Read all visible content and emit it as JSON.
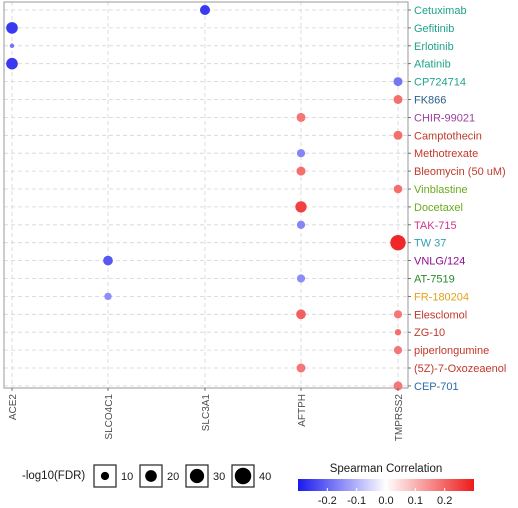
{
  "chart_data": {
    "type": "scatter",
    "title": "",
    "x_categories": [
      "ACE2",
      "SLCO4C1",
      "SLC3A1",
      "AFTPH",
      "TMPRSS2"
    ],
    "y_categories": [
      {
        "label": "Cetuximab",
        "color": "#1fa38a"
      },
      {
        "label": "Gefitinib",
        "color": "#1fa38a"
      },
      {
        "label": "Erlotinib",
        "color": "#1fa38a"
      },
      {
        "label": "Afatinib",
        "color": "#1fa38a"
      },
      {
        "label": "CP724714",
        "color": "#1fa38a"
      },
      {
        "label": "FK866",
        "color": "#2c5f8a"
      },
      {
        "label": "CHIR-99021",
        "color": "#9b3fa0"
      },
      {
        "label": "Camptothecin",
        "color": "#c0392b"
      },
      {
        "label": "Methotrexate",
        "color": "#c0392b"
      },
      {
        "label": "Bleomycin (50 uM)",
        "color": "#c0392b"
      },
      {
        "label": "Vinblastine",
        "color": "#6aab1c"
      },
      {
        "label": "Docetaxel",
        "color": "#6aab1c"
      },
      {
        "label": "TAK-715",
        "color": "#d6338a"
      },
      {
        "label": "TW 37",
        "color": "#2f9fb5"
      },
      {
        "label": "VNLG/124",
        "color": "#8e0c8e"
      },
      {
        "label": "AT-7519",
        "color": "#2a8a2a"
      },
      {
        "label": "FR-180204",
        "color": "#e0a21a"
      },
      {
        "label": "Elesclomol",
        "color": "#c0392b"
      },
      {
        "label": "ZG-10",
        "color": "#c0392b"
      },
      {
        "label": "piperlongumine",
        "color": "#c0392b"
      },
      {
        "label": "(5Z)-7-Oxozeaenol",
        "color": "#c0392b"
      },
      {
        "label": "CEP-701",
        "color": "#2c6aa8"
      }
    ],
    "points": [
      {
        "x": "SLC3A1",
        "y": "Cetuximab",
        "corr": -0.26,
        "neglog10fdr": 15
      },
      {
        "x": "ACE2",
        "y": "Gefitinib",
        "corr": -0.26,
        "neglog10fdr": 20
      },
      {
        "x": "ACE2",
        "y": "Erlotinib",
        "corr": -0.18,
        "neglog10fdr": 3
      },
      {
        "x": "ACE2",
        "y": "Afatinib",
        "corr": -0.26,
        "neglog10fdr": 20
      },
      {
        "x": "TMPRSS2",
        "y": "CP724714",
        "corr": -0.18,
        "neglog10fdr": 12
      },
      {
        "x": "TMPRSS2",
        "y": "FK866",
        "corr": 0.19,
        "neglog10fdr": 12
      },
      {
        "x": "AFTPH",
        "y": "CHIR-99021",
        "corr": 0.18,
        "neglog10fdr": 12
      },
      {
        "x": "TMPRSS2",
        "y": "Camptothecin",
        "corr": 0.19,
        "neglog10fdr": 12
      },
      {
        "x": "AFTPH",
        "y": "Methotrexate",
        "corr": -0.16,
        "neglog10fdr": 10
      },
      {
        "x": "AFTPH",
        "y": "Bleomycin (50 uM)",
        "corr": 0.19,
        "neglog10fdr": 12
      },
      {
        "x": "TMPRSS2",
        "y": "Vinblastine",
        "corr": 0.19,
        "neglog10fdr": 11
      },
      {
        "x": "AFTPH",
        "y": "Docetaxel",
        "corr": 0.25,
        "neglog10fdr": 19
      },
      {
        "x": "AFTPH",
        "y": "TAK-715",
        "corr": -0.16,
        "neglog10fdr": 10
      },
      {
        "x": "TMPRSS2",
        "y": "TW 37",
        "corr": 0.28,
        "neglog10fdr": 35
      },
      {
        "x": "SLCO4C1",
        "y": "VNLG/124",
        "corr": -0.22,
        "neglog10fdr": 14
      },
      {
        "x": "AFTPH",
        "y": "AT-7519",
        "corr": -0.15,
        "neglog10fdr": 10
      },
      {
        "x": "SLCO4C1",
        "y": "FR-180204",
        "corr": -0.15,
        "neglog10fdr": 8
      },
      {
        "x": "AFTPH",
        "y": "Elesclomol",
        "corr": 0.21,
        "neglog10fdr": 14
      },
      {
        "x": "TMPRSS2",
        "y": "Elesclomol",
        "corr": 0.18,
        "neglog10fdr": 10
      },
      {
        "x": "TMPRSS2",
        "y": "ZG-10",
        "corr": 0.19,
        "neglog10fdr": 6
      },
      {
        "x": "TMPRSS2",
        "y": "piperlongumine",
        "corr": 0.18,
        "neglog10fdr": 10
      },
      {
        "x": "AFTPH",
        "y": "(5Z)-7-Oxozeaenol",
        "corr": 0.18,
        "neglog10fdr": 12
      },
      {
        "x": "TMPRSS2",
        "y": "CEP-701",
        "corr": 0.18,
        "neglog10fdr": 12
      }
    ],
    "size_legend": {
      "title": "-log10(FDR)",
      "values": [
        10,
        20,
        30,
        40
      ]
    },
    "color_legend": {
      "title": "Spearman Correlation",
      "ticks": [
        -0.2,
        -0.1,
        0.0,
        0.1,
        0.2
      ],
      "tick_labels": [
        "-0.2",
        "-0.1",
        "0.0",
        "0.1",
        "0.2"
      ],
      "range": [
        -0.3,
        0.3
      ],
      "low_color": "#1a1aee",
      "mid_color": "#ffffff",
      "high_color": "#ee1a1a"
    },
    "grid": true,
    "y_labels_side": "right"
  }
}
